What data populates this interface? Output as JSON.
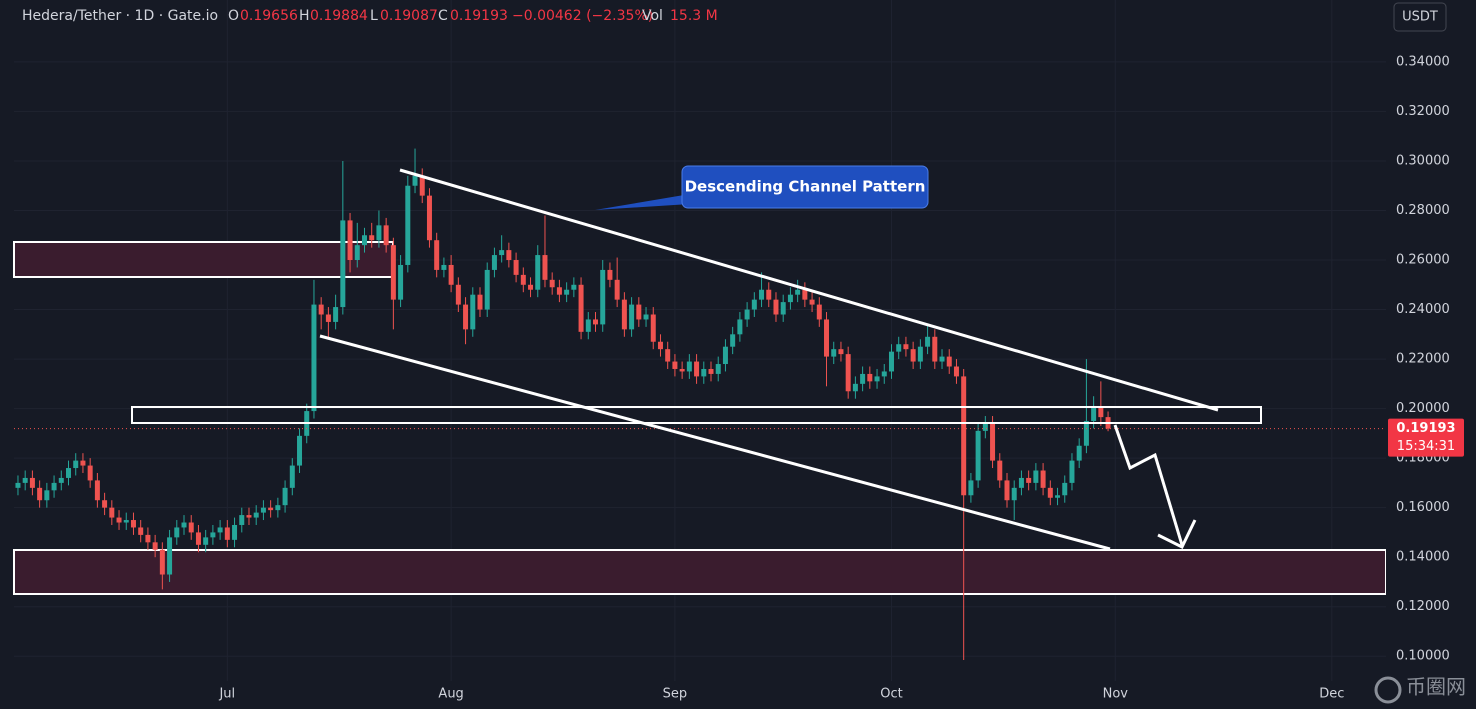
{
  "chart_data": {
    "type": "candlestick",
    "title": "Hedera/Tether · 1D · Gate.io",
    "ohlc_labels": [
      "O",
      "H",
      "L",
      "C"
    ],
    "change": "−0.00462 (−2.35%)",
    "volume_label": "Vol",
    "volume": "15.3 M",
    "currency": "USDT",
    "countdown": "15:34:31",
    "annotation": "Descending Channel Pattern",
    "watermark": "币圈网",
    "up_color": "#26a69a",
    "down_color": "#ef5350",
    "grid": true,
    "xlim": [
      -0.55,
      189.5
    ],
    "ylim": [
      0.09,
      0.365
    ],
    "xticks": [
      {
        "value": 29,
        "label": "Jul"
      },
      {
        "value": 60,
        "label": "Aug"
      },
      {
        "value": 91,
        "label": "Sep"
      },
      {
        "value": 121,
        "label": "Oct"
      },
      {
        "value": 152,
        "label": "Nov"
      },
      {
        "value": 182,
        "label": "Dec"
      }
    ],
    "yticks": [
      {
        "value": 0.1,
        "label": "0.10000"
      },
      {
        "value": 0.12,
        "label": "0.12000"
      },
      {
        "value": 0.14,
        "label": "0.14000"
      },
      {
        "value": 0.16,
        "label": "0.16000"
      },
      {
        "value": 0.18,
        "label": "0.18000"
      },
      {
        "value": 0.2,
        "label": "0.20000"
      },
      {
        "value": 0.22,
        "label": "0.22000"
      },
      {
        "value": 0.24,
        "label": "0.24000"
      },
      {
        "value": 0.26,
        "label": "0.26000"
      },
      {
        "value": 0.28,
        "label": "0.28000"
      },
      {
        "value": 0.3,
        "label": "0.30000"
      },
      {
        "value": 0.32,
        "label": "0.32000"
      },
      {
        "value": 0.34,
        "label": "0.34000"
      }
    ],
    "x": [
      0,
      1,
      2,
      3,
      4,
      5,
      6,
      7,
      8,
      9,
      10,
      11,
      12,
      13,
      14,
      15,
      16,
      17,
      18,
      19,
      20,
      21,
      22,
      23,
      24,
      25,
      26,
      27,
      28,
      29,
      30,
      31,
      32,
      33,
      34,
      35,
      36,
      37,
      38,
      39,
      40,
      41,
      42,
      43,
      44,
      45,
      46,
      47,
      48,
      49,
      50,
      51,
      52,
      53,
      54,
      55,
      56,
      57,
      58,
      59,
      60,
      61,
      62,
      63,
      64,
      65,
      66,
      67,
      68,
      69,
      70,
      71,
      72,
      73,
      74,
      75,
      76,
      77,
      78,
      79,
      80,
      81,
      82,
      83,
      84,
      85,
      86,
      87,
      88,
      89,
      90,
      91,
      92,
      93,
      94,
      95,
      96,
      97,
      98,
      99,
      100,
      101,
      102,
      103,
      104,
      105,
      106,
      107,
      108,
      109,
      110,
      111,
      112,
      113,
      114,
      115,
      116,
      117,
      118,
      119,
      120,
      121,
      122,
      123,
      124,
      125,
      126,
      127,
      128,
      129,
      130,
      131,
      132,
      133,
      134,
      135,
      136,
      137,
      138,
      139,
      140,
      141,
      142,
      143,
      144,
      145,
      146,
      147,
      148,
      149,
      150,
      151
    ],
    "open": [
      0.168,
      0.17,
      0.172,
      0.168,
      0.163,
      0.167,
      0.17,
      0.172,
      0.176,
      0.179,
      0.177,
      0.171,
      0.163,
      0.16,
      0.156,
      0.154,
      0.155,
      0.152,
      0.149,
      0.146,
      0.143,
      0.133,
      0.148,
      0.152,
      0.154,
      0.15,
      0.145,
      0.148,
      0.15,
      0.152,
      0.147,
      0.153,
      0.157,
      0.156,
      0.158,
      0.16,
      0.159,
      0.161,
      0.168,
      0.177,
      0.189,
      0.199,
      0.242,
      0.238,
      0.235,
      0.241,
      0.276,
      0.26,
      0.266,
      0.27,
      0.268,
      0.274,
      0.266,
      0.244,
      0.258,
      0.29,
      0.294,
      0.286,
      0.268,
      0.256,
      0.258,
      0.25,
      0.242,
      0.232,
      0.246,
      0.24,
      0.256,
      0.262,
      0.264,
      0.26,
      0.254,
      0.25,
      0.248,
      0.262,
      0.252,
      0.249,
      0.246,
      0.248,
      0.25,
      0.231,
      0.236,
      0.234,
      0.256,
      0.252,
      0.244,
      0.232,
      0.242,
      0.236,
      0.238,
      0.227,
      0.224,
      0.219,
      0.216,
      0.215,
      0.219,
      0.213,
      0.216,
      0.214,
      0.218,
      0.225,
      0.23,
      0.236,
      0.24,
      0.244,
      0.248,
      0.244,
      0.238,
      0.243,
      0.246,
      0.248,
      0.244,
      0.242,
      0.236,
      0.221,
      0.224,
      0.222,
      0.207,
      0.21,
      0.214,
      0.211,
      0.213,
      0.215,
      0.223,
      0.226,
      0.224,
      0.219,
      0.225,
      0.229,
      0.219,
      0.221,
      0.217,
      0.213,
      0.165,
      0.171,
      0.191,
      0.194,
      0.179,
      0.171,
      0.163,
      0.168,
      0.172,
      0.17,
      0.175,
      0.168,
      0.164,
      0.165,
      0.17,
      0.179,
      0.185,
      0.195,
      0.201,
      0.19656
    ],
    "high": [
      0.173,
      0.175,
      0.175,
      0.171,
      0.17,
      0.173,
      0.175,
      0.179,
      0.182,
      0.182,
      0.18,
      0.174,
      0.166,
      0.163,
      0.159,
      0.158,
      0.158,
      0.155,
      0.152,
      0.149,
      0.146,
      0.151,
      0.155,
      0.157,
      0.157,
      0.153,
      0.151,
      0.153,
      0.155,
      0.155,
      0.156,
      0.16,
      0.16,
      0.161,
      0.163,
      0.163,
      0.164,
      0.171,
      0.18,
      0.192,
      0.202,
      0.252,
      0.245,
      0.241,
      0.246,
      0.3,
      0.279,
      0.275,
      0.273,
      0.275,
      0.28,
      0.277,
      0.269,
      0.262,
      0.294,
      0.305,
      0.297,
      0.289,
      0.271,
      0.261,
      0.262,
      0.253,
      0.245,
      0.249,
      0.249,
      0.259,
      0.265,
      0.27,
      0.267,
      0.263,
      0.257,
      0.253,
      0.266,
      0.278,
      0.255,
      0.252,
      0.251,
      0.253,
      0.253,
      0.239,
      0.239,
      0.26,
      0.259,
      0.261,
      0.247,
      0.245,
      0.245,
      0.241,
      0.241,
      0.23,
      0.227,
      0.222,
      0.219,
      0.222,
      0.222,
      0.219,
      0.219,
      0.221,
      0.228,
      0.233,
      0.239,
      0.243,
      0.247,
      0.255,
      0.251,
      0.247,
      0.246,
      0.249,
      0.252,
      0.251,
      0.247,
      0.245,
      0.239,
      0.227,
      0.227,
      0.225,
      0.213,
      0.217,
      0.217,
      0.216,
      0.218,
      0.226,
      0.229,
      0.229,
      0.227,
      0.228,
      0.234,
      0.232,
      0.224,
      0.224,
      0.22,
      0.216,
      0.174,
      0.194,
      0.197,
      0.197,
      0.182,
      0.174,
      0.171,
      0.175,
      0.175,
      0.178,
      0.178,
      0.171,
      0.168,
      0.173,
      0.182,
      0.188,
      0.22,
      0.205,
      0.211,
      0.19884
    ],
    "low": [
      0.165,
      0.167,
      0.165,
      0.16,
      0.16,
      0.164,
      0.167,
      0.169,
      0.173,
      0.174,
      0.168,
      0.16,
      0.157,
      0.153,
      0.151,
      0.151,
      0.149,
      0.146,
      0.143,
      0.14,
      0.127,
      0.13,
      0.145,
      0.149,
      0.147,
      0.142,
      0.142,
      0.145,
      0.147,
      0.144,
      0.144,
      0.15,
      0.153,
      0.153,
      0.155,
      0.156,
      0.156,
      0.158,
      0.165,
      0.174,
      0.186,
      0.196,
      0.232,
      0.228,
      0.232,
      0.238,
      0.255,
      0.257,
      0.263,
      0.265,
      0.265,
      0.263,
      0.232,
      0.241,
      0.255,
      0.287,
      0.283,
      0.265,
      0.253,
      0.253,
      0.247,
      0.239,
      0.226,
      0.229,
      0.237,
      0.237,
      0.253,
      0.259,
      0.257,
      0.251,
      0.247,
      0.245,
      0.245,
      0.249,
      0.246,
      0.243,
      0.243,
      0.245,
      0.228,
      0.228,
      0.231,
      0.231,
      0.249,
      0.241,
      0.229,
      0.229,
      0.233,
      0.233,
      0.224,
      0.221,
      0.216,
      0.213,
      0.212,
      0.212,
      0.21,
      0.21,
      0.211,
      0.211,
      0.215,
      0.222,
      0.227,
      0.233,
      0.237,
      0.241,
      0.241,
      0.235,
      0.235,
      0.24,
      0.243,
      0.241,
      0.239,
      0.233,
      0.209,
      0.218,
      0.219,
      0.204,
      0.204,
      0.207,
      0.208,
      0.208,
      0.21,
      0.212,
      0.22,
      0.221,
      0.216,
      0.216,
      0.222,
      0.216,
      0.216,
      0.214,
      0.21,
      0.0985,
      0.162,
      0.168,
      0.188,
      0.176,
      0.168,
      0.16,
      0.155,
      0.165,
      0.167,
      0.167,
      0.165,
      0.161,
      0.161,
      0.162,
      0.167,
      0.176,
      0.182,
      0.192,
      0.193,
      0.19087
    ],
    "close": [
      0.17,
      0.172,
      0.168,
      0.163,
      0.167,
      0.17,
      0.172,
      0.176,
      0.179,
      0.177,
      0.171,
      0.163,
      0.16,
      0.156,
      0.154,
      0.155,
      0.152,
      0.149,
      0.146,
      0.143,
      0.133,
      0.148,
      0.152,
      0.154,
      0.15,
      0.145,
      0.148,
      0.15,
      0.152,
      0.147,
      0.153,
      0.157,
      0.156,
      0.158,
      0.16,
      0.159,
      0.161,
      0.168,
      0.177,
      0.189,
      0.199,
      0.242,
      0.238,
      0.235,
      0.241,
      0.276,
      0.26,
      0.266,
      0.27,
      0.268,
      0.274,
      0.266,
      0.244,
      0.258,
      0.29,
      0.294,
      0.286,
      0.268,
      0.256,
      0.258,
      0.25,
      0.242,
      0.232,
      0.246,
      0.24,
      0.256,
      0.262,
      0.264,
      0.26,
      0.254,
      0.25,
      0.248,
      0.262,
      0.252,
      0.249,
      0.246,
      0.248,
      0.25,
      0.231,
      0.236,
      0.234,
      0.256,
      0.252,
      0.244,
      0.232,
      0.242,
      0.236,
      0.238,
      0.227,
      0.224,
      0.219,
      0.216,
      0.215,
      0.219,
      0.213,
      0.216,
      0.214,
      0.218,
      0.225,
      0.23,
      0.236,
      0.24,
      0.244,
      0.248,
      0.244,
      0.238,
      0.243,
      0.246,
      0.248,
      0.244,
      0.242,
      0.236,
      0.221,
      0.224,
      0.222,
      0.207,
      0.21,
      0.214,
      0.211,
      0.213,
      0.215,
      0.223,
      0.226,
      0.224,
      0.219,
      0.225,
      0.229,
      0.219,
      0.221,
      0.217,
      0.213,
      0.165,
      0.171,
      0.191,
      0.194,
      0.179,
      0.171,
      0.163,
      0.168,
      0.172,
      0.17,
      0.175,
      0.168,
      0.164,
      0.165,
      0.17,
      0.179,
      0.185,
      0.195,
      0.201,
      0.19656,
      0.19193
    ]
  }
}
